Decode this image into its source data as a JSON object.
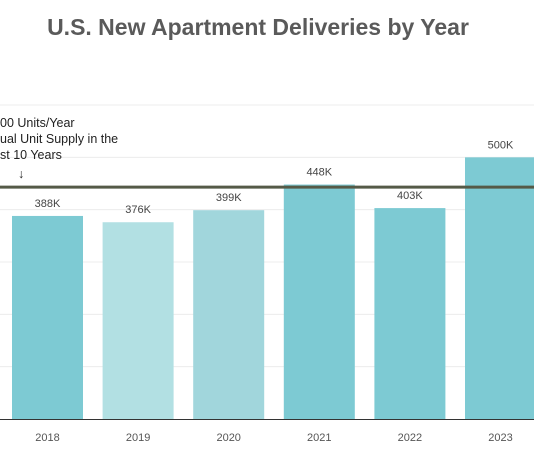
{
  "chart_data": {
    "type": "bar",
    "title": "U.S. New Apartment Deliveries by Year",
    "categories": [
      "2018",
      "2019",
      "2020",
      "2021",
      "2022",
      "2023"
    ],
    "values": [
      388,
      376,
      399,
      448,
      403,
      500
    ],
    "value_labels": [
      "388K",
      "376K",
      "399K",
      "448K",
      "403K",
      "500K"
    ],
    "bar_colors": [
      "#7dcad3",
      "#b2e0e3",
      "#a1d6dc",
      "#7dcad3",
      "#7dcad3",
      "#7dcad3"
    ],
    "reference_line": {
      "value": 443,
      "color": "#555a47",
      "annotation_lines": [
        "00 Units/Year",
        "ual Unit Supply in the",
        "st 10 Years"
      ],
      "arrow": "↓"
    },
    "ylim": [
      0,
      600
    ],
    "grid": true,
    "xlabel": "",
    "ylabel": ""
  }
}
